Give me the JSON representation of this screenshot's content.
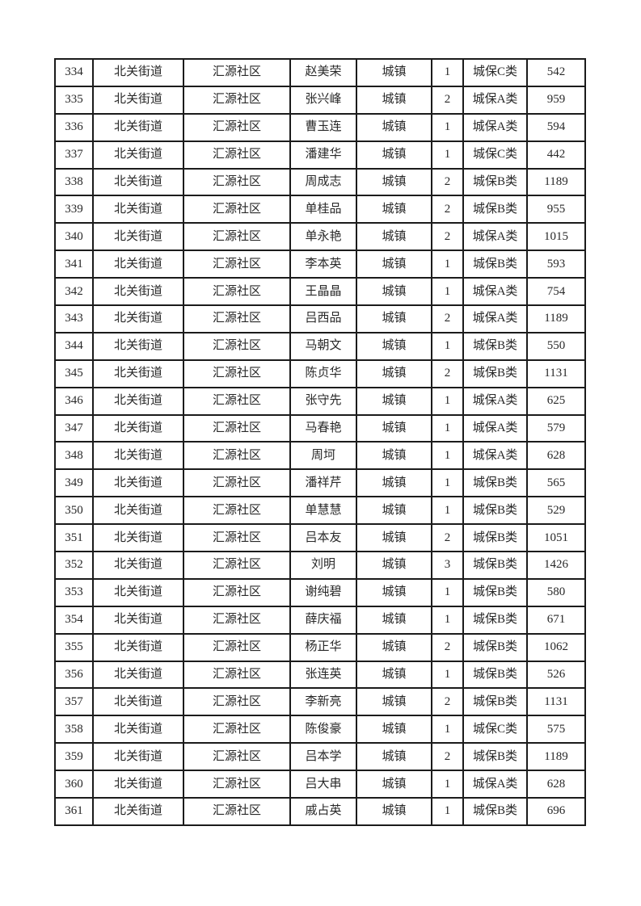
{
  "page": {
    "background_color": "#ffffff",
    "text_color": "#282828",
    "border_color": "#1b1b1b"
  },
  "table": {
    "column_keys": [
      "index",
      "street",
      "community",
      "name",
      "residence_type",
      "person_count",
      "category",
      "amount"
    ],
    "rows": [
      [
        "334",
        "北关街道",
        "汇源社区",
        "赵美荣",
        "城镇",
        "1",
        "城保C类",
        "542"
      ],
      [
        "335",
        "北关街道",
        "汇源社区",
        "张兴峰",
        "城镇",
        "2",
        "城保A类",
        "959"
      ],
      [
        "336",
        "北关街道",
        "汇源社区",
        "曹玉连",
        "城镇",
        "1",
        "城保A类",
        "594"
      ],
      [
        "337",
        "北关街道",
        "汇源社区",
        "潘建华",
        "城镇",
        "1",
        "城保C类",
        "442"
      ],
      [
        "338",
        "北关街道",
        "汇源社区",
        "周成志",
        "城镇",
        "2",
        "城保B类",
        "1189"
      ],
      [
        "339",
        "北关街道",
        "汇源社区",
        "单桂品",
        "城镇",
        "2",
        "城保B类",
        "955"
      ],
      [
        "340",
        "北关街道",
        "汇源社区",
        "单永艳",
        "城镇",
        "2",
        "城保A类",
        "1015"
      ],
      [
        "341",
        "北关街道",
        "汇源社区",
        "李本英",
        "城镇",
        "1",
        "城保B类",
        "593"
      ],
      [
        "342",
        "北关街道",
        "汇源社区",
        "王晶晶",
        "城镇",
        "1",
        "城保A类",
        "754"
      ],
      [
        "343",
        "北关街道",
        "汇源社区",
        "吕西品",
        "城镇",
        "2",
        "城保A类",
        "1189"
      ],
      [
        "344",
        "北关街道",
        "汇源社区",
        "马朝文",
        "城镇",
        "1",
        "城保B类",
        "550"
      ],
      [
        "345",
        "北关街道",
        "汇源社区",
        "陈贞华",
        "城镇",
        "2",
        "城保B类",
        "1131"
      ],
      [
        "346",
        "北关街道",
        "汇源社区",
        "张守先",
        "城镇",
        "1",
        "城保A类",
        "625"
      ],
      [
        "347",
        "北关街道",
        "汇源社区",
        "马春艳",
        "城镇",
        "1",
        "城保A类",
        "579"
      ],
      [
        "348",
        "北关街道",
        "汇源社区",
        "周坷",
        "城镇",
        "1",
        "城保A类",
        "628"
      ],
      [
        "349",
        "北关街道",
        "汇源社区",
        "潘祥芹",
        "城镇",
        "1",
        "城保B类",
        "565"
      ],
      [
        "350",
        "北关街道",
        "汇源社区",
        "单慧慧",
        "城镇",
        "1",
        "城保B类",
        "529"
      ],
      [
        "351",
        "北关街道",
        "汇源社区",
        "吕本友",
        "城镇",
        "2",
        "城保B类",
        "1051"
      ],
      [
        "352",
        "北关街道",
        "汇源社区",
        "刘明",
        "城镇",
        "3",
        "城保B类",
        "1426"
      ],
      [
        "353",
        "北关街道",
        "汇源社区",
        "谢纯碧",
        "城镇",
        "1",
        "城保B类",
        "580"
      ],
      [
        "354",
        "北关街道",
        "汇源社区",
        "薛庆福",
        "城镇",
        "1",
        "城保B类",
        "671"
      ],
      [
        "355",
        "北关街道",
        "汇源社区",
        "杨正华",
        "城镇",
        "2",
        "城保B类",
        "1062"
      ],
      [
        "356",
        "北关街道",
        "汇源社区",
        "张连英",
        "城镇",
        "1",
        "城保B类",
        "526"
      ],
      [
        "357",
        "北关街道",
        "汇源社区",
        "李新亮",
        "城镇",
        "2",
        "城保B类",
        "1131"
      ],
      [
        "358",
        "北关街道",
        "汇源社区",
        "陈俊豪",
        "城镇",
        "1",
        "城保C类",
        "575"
      ],
      [
        "359",
        "北关街道",
        "汇源社区",
        "吕本学",
        "城镇",
        "2",
        "城保B类",
        "1189"
      ],
      [
        "360",
        "北关街道",
        "汇源社区",
        "吕大串",
        "城镇",
        "1",
        "城保A类",
        "628"
      ],
      [
        "361",
        "北关街道",
        "汇源社区",
        "戚占英",
        "城镇",
        "1",
        "城保B类",
        "696"
      ]
    ]
  }
}
